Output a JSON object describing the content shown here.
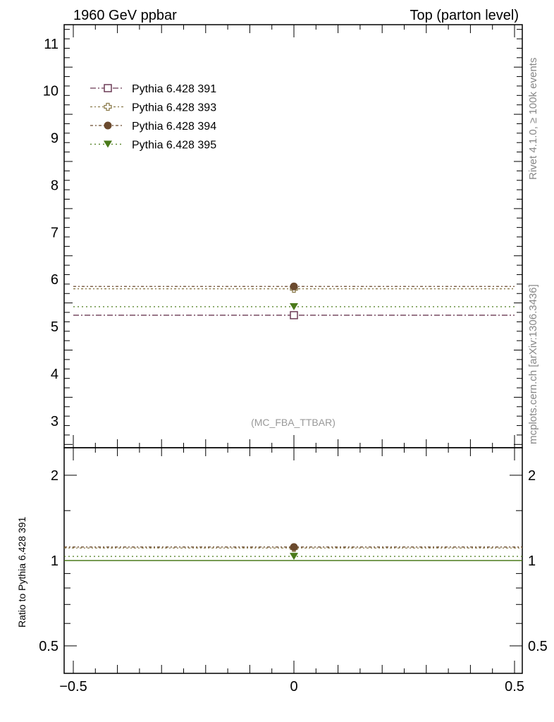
{
  "chart_data": {
    "type": "scatter",
    "title_left": "1960 GeV ppbar",
    "title_right": "Top (parton level)",
    "side_label_top": "Rivet 4.1.0, ≥ 100k events",
    "side_label_bottom": "mcplots.cern.ch [arXiv:1306.3436]",
    "analysis_label": "(MC_FBA_TTBAR)",
    "xlim": [
      -0.5,
      0.5
    ],
    "xticks": [
      "−0.5",
      "0",
      "0.5"
    ],
    "xtick_values": [
      -0.5,
      0,
      0.5
    ],
    "main": {
      "ylim": [
        2.43,
        11.4
      ],
      "yticks": [
        3,
        4,
        5,
        6,
        7,
        8,
        9,
        10,
        11
      ]
    },
    "ratio": {
      "ylabel": "Ratio to Pythia 6.428 391",
      "ylim": [
        0.4,
        2.5
      ],
      "yticks": [
        0.5,
        1,
        2
      ],
      "scale": "log"
    },
    "legend_placement": "top-left",
    "series": [
      {
        "name": "Pythia 6.428 391",
        "color": "#6b3a55",
        "marker": "open-square",
        "x": [
          0
        ],
        "values": [
          5.24
        ],
        "ratio": [
          1.0
        ],
        "dash": "8,3,2,3"
      },
      {
        "name": "Pythia 6.428 393",
        "color": "#8a7a4a",
        "marker": "open-cross",
        "x": [
          0
        ],
        "values": [
          5.8
        ],
        "ratio": [
          1.107
        ],
        "dash": "3,3,2,3"
      },
      {
        "name": "Pythia 6.428 394",
        "color": "#6b4a2e",
        "marker": "filled-circle",
        "x": [
          0
        ],
        "values": [
          5.85
        ],
        "ratio": [
          1.116
        ],
        "dash": "4,3,2,3"
      },
      {
        "name": "Pythia 6.428 395",
        "color": "#4a7a1a",
        "marker": "filled-triangle-down",
        "x": [
          0
        ],
        "values": [
          5.42
        ],
        "ratio": [
          1.034
        ],
        "dash": "2,4"
      }
    ]
  }
}
